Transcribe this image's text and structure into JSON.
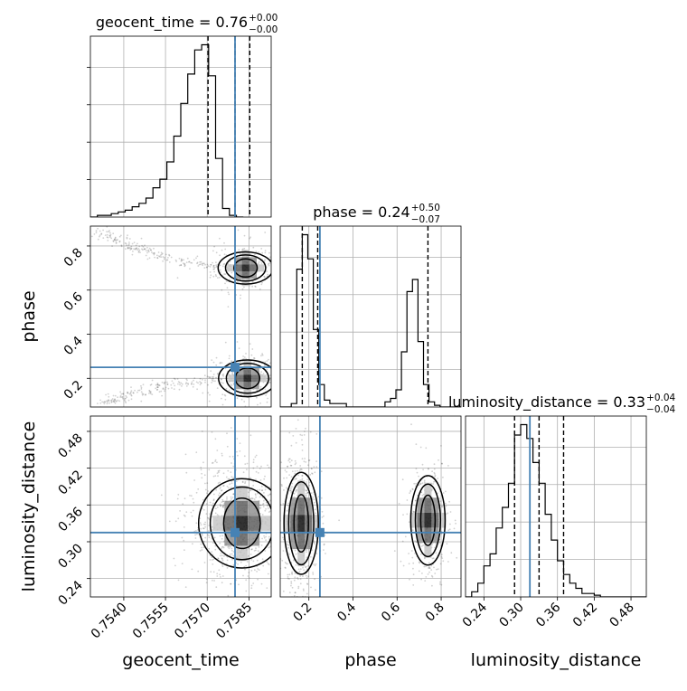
{
  "chart_data": {
    "type": "corner",
    "parameters": [
      {
        "key": "geocent_time",
        "label": "geocent_time",
        "range": [
          0.7528,
          0.7593
        ],
        "ticks": [
          0.754,
          0.7555,
          0.757,
          0.7585
        ],
        "tick_labels": [
          "0.7540",
          "0.7555",
          "0.7570",
          "0.7585"
        ],
        "title_main": "geocent_time = 0.76",
        "title_plus": "+0.00",
        "title_minus": "−0.00",
        "quantiles": [
          0.75703,
          0.758,
          0.75853
        ],
        "truth": 0.758
      },
      {
        "key": "phase",
        "label": "phase",
        "range": [
          0.07,
          0.89
        ],
        "ticks": [
          0.2,
          0.4,
          0.6,
          0.8
        ],
        "tick_labels": [
          "0.2",
          "0.4",
          "0.6",
          "0.8"
        ],
        "title_main": "phase = 0.24",
        "title_plus": "+0.50",
        "title_minus": "−0.07",
        "quantiles": [
          0.17,
          0.24,
          0.74
        ],
        "truth": 0.25
      },
      {
        "key": "luminosity_distance",
        "label": "luminosity_distance",
        "range": [
          0.21,
          0.505
        ],
        "ticks": [
          0.24,
          0.3,
          0.36,
          0.42,
          0.48
        ],
        "tick_labels": [
          "0.24",
          "0.30",
          "0.36",
          "0.42",
          "0.48"
        ],
        "title_main": "luminosity_distance = 0.33",
        "title_plus": "+0.04",
        "title_minus": "−0.04",
        "quantiles": [
          0.29,
          0.33,
          0.37
        ],
        "truth": 0.315
      }
    ],
    "histograms": [
      {
        "param": "geocent_time",
        "bin_edges_start": 0.7528,
        "bin_width": 0.00025,
        "counts": [
          0,
          1,
          1,
          2,
          3,
          4,
          6,
          8,
          11,
          17,
          22,
          32,
          47,
          66,
          83,
          97,
          100,
          82,
          34,
          5,
          1,
          0
        ]
      },
      {
        "param": "phase",
        "bin_edges_start": 0.07,
        "bin_width": 0.025,
        "counts": [
          0,
          0,
          2,
          80,
          100,
          86,
          45,
          13,
          4,
          2,
          2,
          2,
          0,
          0,
          0,
          0,
          0,
          0,
          0,
          3,
          5,
          10,
          32,
          67,
          74,
          38,
          13,
          3,
          1,
          0,
          0,
          0,
          0
        ]
      },
      {
        "param": "luminosity_distance",
        "bin_edges_start": 0.21,
        "bin_width": 0.01,
        "counts": [
          0,
          3,
          8,
          18,
          25,
          40,
          52,
          66,
          94,
          100,
          92,
          78,
          66,
          48,
          33,
          21,
          13,
          8,
          5,
          2,
          2,
          1,
          0,
          0,
          0,
          0,
          0,
          0,
          0,
          0
        ]
      }
    ],
    "pair_panels": [
      {
        "x": "geocent_time",
        "y": "phase",
        "modes": [
          {
            "cx": 0.75838,
            "cy": 0.7,
            "sx": 0.00038,
            "sy": 0.035,
            "w": 0.5,
            "tail": [
              0.753,
              0.87
            ]
          },
          {
            "cx": 0.75845,
            "cy": 0.2,
            "sx": 0.0004,
            "sy": 0.04,
            "w": 0.5,
            "tail": [
              0.753,
              0.08
            ]
          }
        ]
      },
      {
        "x": "geocent_time",
        "y": "luminosity_distance",
        "modes": [
          {
            "cx": 0.75825,
            "cy": 0.33,
            "sx": 0.0006,
            "sy": 0.035,
            "w": 1.0
          }
        ]
      },
      {
        "x": "phase",
        "y": "luminosity_distance",
        "modes": [
          {
            "cx": 0.165,
            "cy": 0.33,
            "sx": 0.03,
            "sy": 0.04,
            "w": 0.6
          },
          {
            "cx": 0.74,
            "cy": 0.335,
            "sx": 0.03,
            "sy": 0.035,
            "w": 0.4
          }
        ]
      }
    ],
    "truth_color": "#4682b4",
    "line_color": "#000000",
    "grid": true
  }
}
